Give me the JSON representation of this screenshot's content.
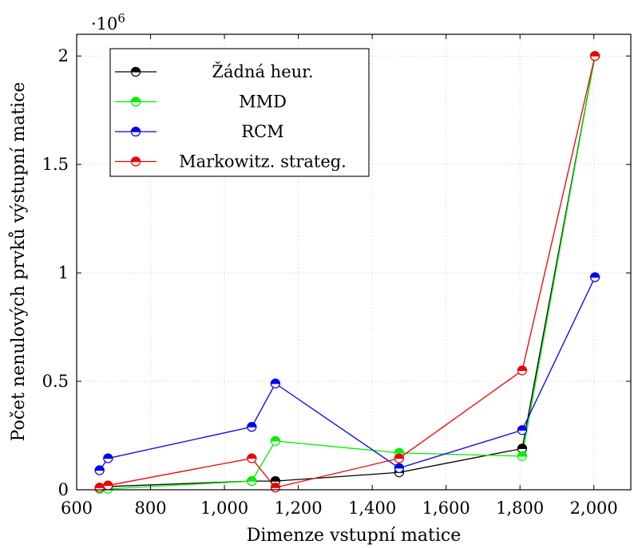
{
  "chart_data": {
    "type": "line",
    "xlabel": "Dimenze vstupní matice",
    "ylabel": "Počet nenulových prvků výstupní matice",
    "y_multiplier": "·10",
    "y_multiplier_exp": "6",
    "xlim": [
      600,
      2100
    ],
    "ylim": [
      0,
      2.1
    ],
    "xticks": [
      600,
      800,
      1000,
      1200,
      1400,
      1600,
      1800,
      2000
    ],
    "xtick_labels": [
      "600",
      "800",
      "1,000",
      "1,200",
      "1,400",
      "1,600",
      "1,800",
      "2,000"
    ],
    "yticks": [
      0,
      0.5,
      1,
      1.5,
      2
    ],
    "ytick_labels": [
      "0",
      "0.5",
      "1",
      "1.5",
      "2"
    ],
    "grid": true,
    "legend_position": "top-left",
    "series": [
      {
        "name": "Žádná heur.",
        "color": "#000000",
        "points": [
          [
            662,
            0.005
          ],
          [
            685,
            0.015
          ],
          [
            1074,
            0.04
          ],
          [
            1138,
            0.04
          ],
          [
            1473,
            0.08
          ],
          [
            1806,
            0.19
          ],
          [
            2003,
            2.0
          ]
        ]
      },
      {
        "name": "MMD",
        "color": "#00ee00",
        "points": [
          [
            662,
            0.004
          ],
          [
            685,
            0.004
          ],
          [
            1074,
            0.04
          ],
          [
            1138,
            0.225
          ],
          [
            1473,
            0.17
          ],
          [
            1806,
            0.155
          ],
          [
            2003,
            2.0
          ]
        ]
      },
      {
        "name": "RCM",
        "color": "#0000ee",
        "points": [
          [
            662,
            0.09
          ],
          [
            685,
            0.145
          ],
          [
            1074,
            0.29
          ],
          [
            1138,
            0.49
          ],
          [
            1473,
            0.1
          ],
          [
            1806,
            0.275
          ],
          [
            2003,
            0.98
          ]
        ]
      },
      {
        "name": "Markowitz. strateg.",
        "color": "#ee0000",
        "points": [
          [
            662,
            0.01
          ],
          [
            685,
            0.02
          ],
          [
            1074,
            0.145
          ],
          [
            1138,
            0.01
          ],
          [
            1473,
            0.145
          ],
          [
            1806,
            0.55
          ],
          [
            2003,
            2.0
          ]
        ]
      }
    ]
  }
}
